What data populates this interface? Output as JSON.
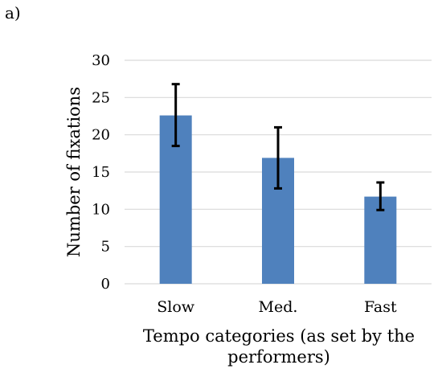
{
  "panel_label": "a)",
  "chart_data": {
    "type": "bar",
    "categories": [
      "Slow",
      "Med.",
      "Fast"
    ],
    "values": [
      22.6,
      16.9,
      11.7
    ],
    "error_upper": [
      26.8,
      21.0,
      13.6
    ],
    "error_lower": [
      18.5,
      12.8,
      9.9
    ],
    "xlabel_lines": [
      "Tempo categories (as set by the",
      "performers)"
    ],
    "ylabel": "Number of fixations",
    "ylim": [
      0,
      30
    ],
    "yticks": [
      "0",
      "5",
      "10",
      "15",
      "20",
      "25",
      "30"
    ],
    "ytick_values": [
      0,
      5,
      10,
      15,
      20,
      25,
      30
    ],
    "grid": true,
    "bar_color": "#4f81bd",
    "grid_color": "#d9d9d9",
    "error_color": "#000000"
  }
}
